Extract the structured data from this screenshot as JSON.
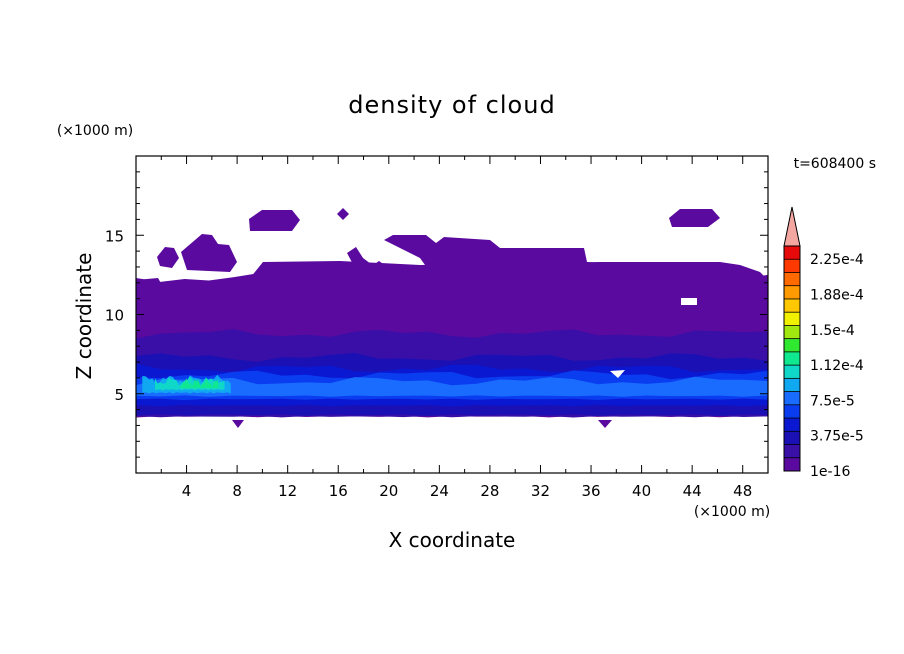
{
  "chart_data": {
    "type": "heatmap",
    "title": "density of cloud",
    "time_label": "t=608400 s",
    "xlabel": "X coordinate",
    "ylabel": "Z coordinate",
    "x_unit": "(×1000 m)",
    "y_unit": "(×1000 m)",
    "xlim": [
      0,
      50
    ],
    "ylim": [
      0,
      20
    ],
    "x_ticks": [
      4,
      8,
      12,
      16,
      20,
      24,
      28,
      32,
      36,
      40,
      44,
      48
    ],
    "y_ticks": [
      5,
      10,
      15
    ],
    "colorbar": {
      "labels": [
        "1e-16",
        "3.75e-5",
        "7.5e-5",
        "1.12e-4",
        "1.5e-4",
        "1.88e-4",
        "2.25e-4"
      ],
      "levels": [
        "#5a0a9e",
        "#3a0fa8",
        "#1a10b4",
        "#0a18d2",
        "#0a3cf0",
        "#1a6cff",
        "#10a8f0",
        "#10d8c8",
        "#10e890",
        "#30e830",
        "#a0e810",
        "#f0f000",
        "#ffc800",
        "#ff9a00",
        "#ff6a00",
        "#ff3a00",
        "#e80a0a"
      ],
      "extend_color": "#f4a6a0"
    },
    "fields": [
      {
        "level": 0,
        "x0": 0,
        "x1": 50,
        "z0": 3.5,
        "z1": 12.3
      },
      {
        "level": 1,
        "x0": 0,
        "x1": 50,
        "z0": 3.5,
        "z1": 8.8
      },
      {
        "level": 2,
        "x0": 0,
        "x1": 50,
        "z0": 3.6,
        "z1": 7.3
      },
      {
        "level": 3,
        "x0": 0,
        "x1": 50,
        "z0": 4.2,
        "z1": 6.6
      },
      {
        "level": 4,
        "x0": 0,
        "x1": 50,
        "z0": 4.6,
        "z1": 6.2
      },
      {
        "level": 5,
        "x0": 0,
        "x1": 50,
        "z0": 4.8,
        "z1": 5.8
      },
      {
        "level": 6,
        "x0": 0.5,
        "x1": 7.5,
        "z0": 5.0,
        "z1": 5.9
      },
      {
        "level": 7,
        "x0": 1.5,
        "x1": 7.0,
        "z0": 5.2,
        "z1": 5.8
      },
      {
        "level": 8,
        "x0": 3.5,
        "x1": 6.5,
        "z0": 5.3,
        "z1": 5.7
      }
    ]
  }
}
